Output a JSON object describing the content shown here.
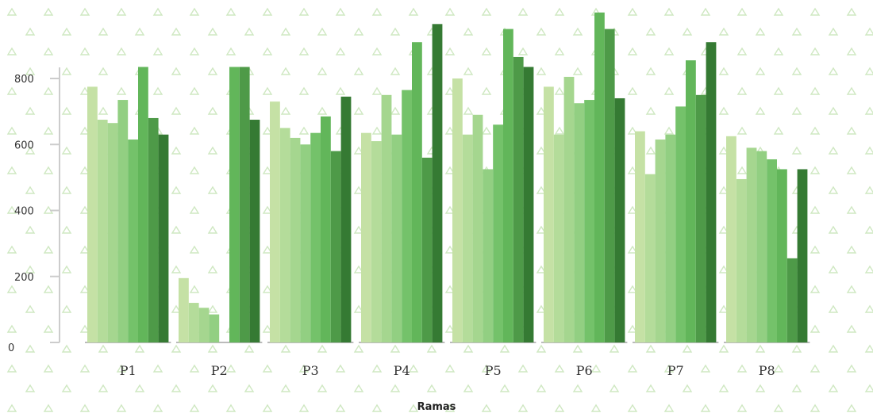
{
  "chart_data": {
    "type": "bar",
    "title": "",
    "xlabel": "Ramas",
    "ylabel": "",
    "ylim": [
      0,
      1000
    ],
    "yticks": [
      0,
      200,
      400,
      600,
      800
    ],
    "categories": [
      "P1",
      "P2",
      "P3",
      "P4",
      "P5",
      "P6",
      "P7",
      "P8"
    ],
    "grid": false,
    "legend": "none",
    "colors": [
      "#c5e1a5",
      "#b4dc9a",
      "#a5d68f",
      "#92cf82",
      "#74c26a",
      "#62b65a",
      "#4e9a48",
      "#357a33"
    ],
    "background_pattern": "light-green-triangles",
    "series": [
      {
        "values": [
          775,
          195,
          730,
          635,
          800,
          775,
          640,
          625
        ]
      },
      {
        "values": [
          675,
          120,
          650,
          610,
          630,
          630,
          510,
          495
        ]
      },
      {
        "values": [
          665,
          105,
          620,
          750,
          690,
          805,
          615,
          590
        ]
      },
      {
        "values": [
          735,
          85,
          600,
          630,
          525,
          725,
          630,
          580
        ]
      },
      {
        "values": [
          615,
          0,
          635,
          765,
          660,
          735,
          715,
          555
        ]
      },
      {
        "values": [
          835,
          835,
          685,
          910,
          950,
          1000,
          855,
          525
        ]
      },
      {
        "values": [
          680,
          835,
          580,
          560,
          865,
          950,
          750,
          255
        ]
      },
      {
        "values": [
          630,
          675,
          745,
          965,
          835,
          740,
          910,
          525
        ]
      }
    ]
  }
}
